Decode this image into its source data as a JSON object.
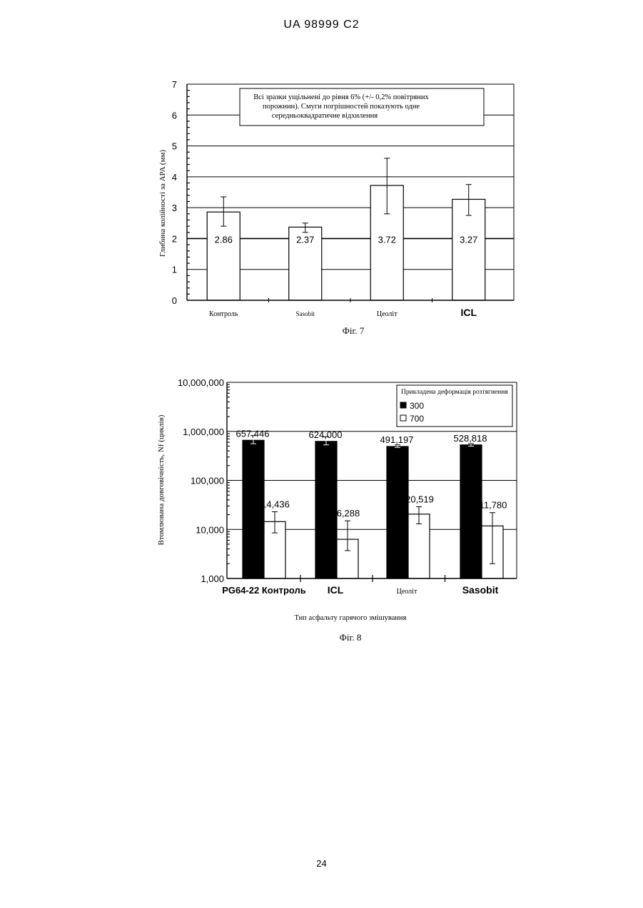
{
  "header": {
    "text": "UA   98999   C2"
  },
  "page_number": "24",
  "chart_data": [
    {
      "type": "bar",
      "caption": "Фіг. 7",
      "ylabel": "Глибина колійності за APA (мм)",
      "xlabel": "",
      "ylim": [
        0,
        7
      ],
      "yticks": [
        "0",
        "1",
        "2",
        "3",
        "4",
        "5",
        "6",
        "7"
      ],
      "grid": true,
      "categories": [
        "Контроль",
        "Sasobit",
        "Цеоліт",
        "ICL"
      ],
      "values": [
        2.86,
        2.37,
        3.72,
        3.27
      ],
      "value_labels": [
        "2.86",
        "2.37",
        "3.72",
        "3.27"
      ],
      "error_low": [
        2.4,
        2.2,
        2.8,
        2.75
      ],
      "error_high": [
        3.35,
        2.5,
        4.6,
        3.75
      ],
      "annotation": {
        "lines": [
          "Всі зразки ущільнені до рівня 6% (+/- 0,2% повітряних",
          "порожнин). Смуги погрішностей показують одне",
          "середньоквадратичне відхилення"
        ]
      }
    },
    {
      "type": "bar",
      "caption": "Фіг. 8",
      "scale": "log",
      "ylabel": "Втомлювана довговічність, Nf (циклів)",
      "xlabel": "Тип асфальту гарячого змішування",
      "ylim": [
        1000,
        10000000
      ],
      "yticks": [
        "1,000",
        "10,000",
        "100,000",
        "1,000,000",
        "10,000,000"
      ],
      "grid": true,
      "categories": [
        "PG64-22 Контроль",
        "ICL",
        "Цеоліт",
        "Sasobit"
      ],
      "legend": {
        "title": "Прикладена деформація розтягнення",
        "position": "top-right"
      },
      "series": [
        {
          "name": "300",
          "color": "#000000",
          "values": [
            657446,
            624000,
            491197,
            528818
          ],
          "value_labels": [
            "657,446",
            "624,000",
            "491,197",
            "528,818"
          ],
          "error_low": [
            560000,
            530000,
            470000,
            500000
          ],
          "error_high": [
            820000,
            780000,
            530000,
            560000
          ]
        },
        {
          "name": "700",
          "color": "#ffffff",
          "values": [
            14436,
            6288,
            20519,
            11780
          ],
          "value_labels": [
            "14,436",
            "6,288",
            "20,519",
            "11,780"
          ],
          "error_low": [
            8500,
            3700,
            13000,
            2000
          ],
          "error_high": [
            23000,
            15000,
            29000,
            22000
          ]
        }
      ]
    }
  ]
}
